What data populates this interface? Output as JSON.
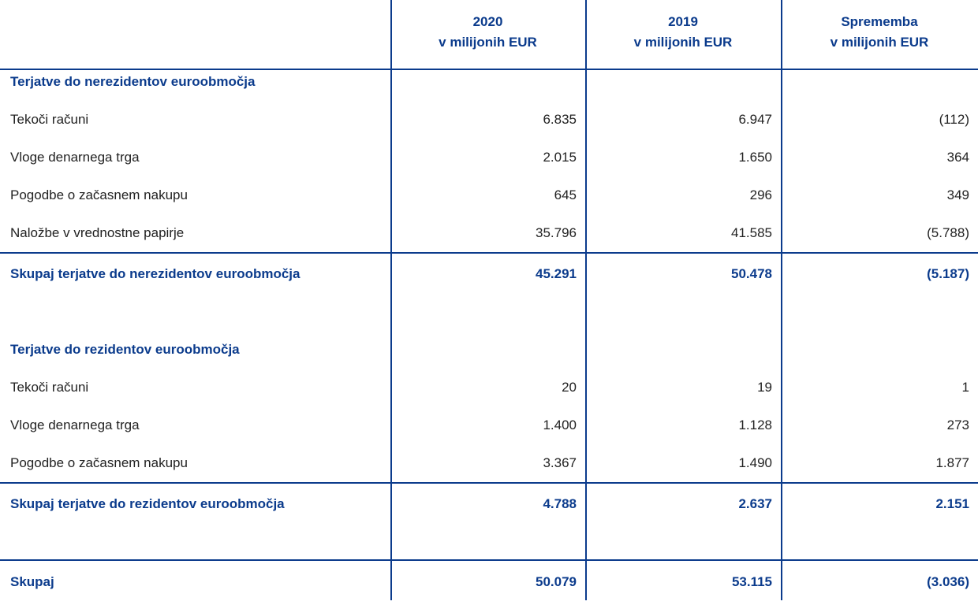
{
  "header": {
    "columns": [
      {
        "line1": "2020",
        "line2": "v milijonih EUR"
      },
      {
        "line1": "2019",
        "line2": "v milijonih EUR"
      },
      {
        "line1": "Sprememba",
        "line2": "v milijonih EUR"
      }
    ]
  },
  "sections": [
    {
      "title": "Terjatve do nerezidentov euroobmočja",
      "rows": [
        {
          "label": "Tekoči računi",
          "values": [
            "6.835",
            "6.947",
            "(112)"
          ]
        },
        {
          "label": "Vloge denarnega trga",
          "values": [
            "2.015",
            "1.650",
            "364"
          ]
        },
        {
          "label": "Pogodbe o začasnem nakupu",
          "values": [
            "645",
            "296",
            "349"
          ]
        },
        {
          "label": "Naložbe v vrednostne papirje",
          "values": [
            "35.796",
            "41.585",
            "(5.788)"
          ]
        }
      ],
      "total": {
        "label": "Skupaj terjatve do nerezidentov euroobmočja",
        "values": [
          "45.291",
          "50.478",
          "(5.187)"
        ]
      }
    },
    {
      "title": "Terjatve do rezidentov euroobmočja",
      "rows": [
        {
          "label": "Tekoči računi",
          "values": [
            "20",
            "19",
            "1"
          ]
        },
        {
          "label": "Vloge denarnega trga",
          "values": [
            "1.400",
            "1.128",
            "273"
          ]
        },
        {
          "label": "Pogodbe o začasnem nakupu",
          "values": [
            "3.367",
            "1.490",
            "1.877"
          ]
        }
      ],
      "total": {
        "label": "Skupaj terjatve do rezidentov euroobmočja",
        "values": [
          "4.788",
          "2.637",
          "2.151"
        ]
      }
    }
  ],
  "grand_total": {
    "label": "Skupaj",
    "values": [
      "50.079",
      "53.115",
      "(3.036)"
    ]
  }
}
